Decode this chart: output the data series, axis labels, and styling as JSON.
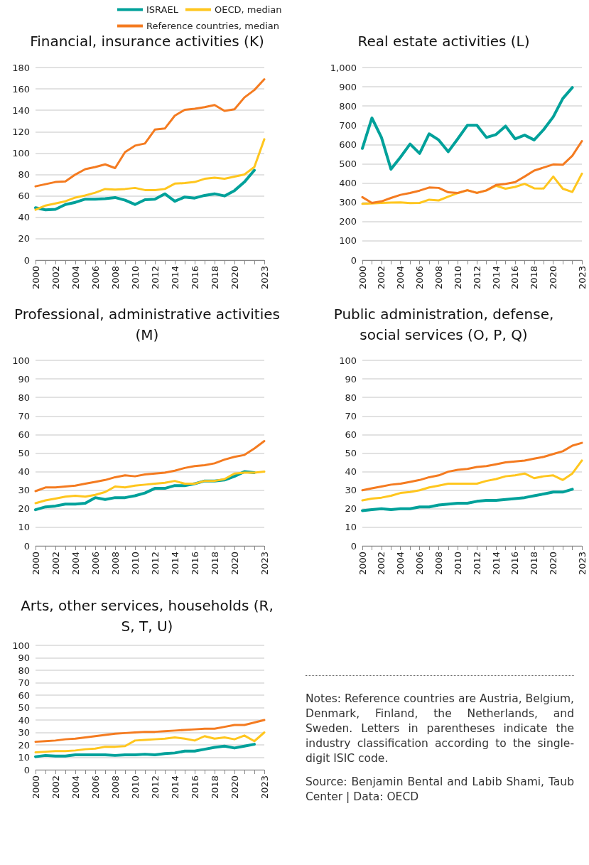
{
  "chart_data": [
    {
      "type": "line",
      "title": "Financial, insurance activities (K)",
      "legend": "top",
      "grid": "y",
      "marker": "none",
      "line_style": "solid",
      "categories": [
        "2000",
        null,
        "2002",
        null,
        "2004",
        null,
        "2006",
        null,
        "2008",
        null,
        "2010",
        null,
        "2012",
        null,
        "2014",
        null,
        "2016",
        null,
        "2018",
        null,
        "2020",
        null,
        null,
        "2023"
      ],
      "ylim": [
        0,
        180
      ],
      "yticks": [
        0,
        20,
        40,
        60,
        80,
        100,
        120,
        140,
        160,
        180
      ],
      "series": [
        {
          "name": "ISRAEL",
          "color": "#00a19a",
          "values": [
            49,
            47,
            47.5,
            52,
            54,
            57,
            57,
            57.5,
            58.5,
            56,
            52,
            56.5,
            57,
            62,
            55,
            59,
            58,
            60.5,
            62,
            60,
            65,
            73,
            84,
            null
          ]
        },
        {
          "name": "OECD, median",
          "color": "#ffc61e",
          "values": [
            47,
            51,
            53,
            55,
            58.5,
            60.5,
            63,
            66.5,
            66,
            66.5,
            67.5,
            65.5,
            65.5,
            66.5,
            71.5,
            72,
            73,
            76,
            77,
            76,
            78,
            80,
            87,
            113
          ]
        },
        {
          "name": "Reference countries, median",
          "color": "#f47b20",
          "values": [
            69,
            71,
            73,
            73.5,
            80,
            85,
            87,
            89.5,
            86,
            101,
            107,
            109,
            122,
            123,
            135,
            140.5,
            141.5,
            143,
            145,
            139.5,
            141,
            152,
            159,
            169
          ]
        }
      ]
    },
    {
      "type": "line",
      "title": "Real estate activities (L)",
      "grid": "y",
      "marker": "none",
      "line_style": "solid",
      "categories": [
        "2000",
        null,
        "2002",
        null,
        "2004",
        null,
        "2006",
        null,
        "2008",
        null,
        "2010",
        null,
        "2012",
        null,
        "2014",
        null,
        "2016",
        null,
        "2018",
        null,
        "2020",
        null,
        null,
        "2023"
      ],
      "ylim": [
        0,
        1000
      ],
      "yticks": [
        0,
        100,
        200,
        300,
        400,
        500,
        600,
        700,
        800,
        900,
        {
          "value": 1000,
          "label": "1,000"
        }
      ],
      "series": [
        {
          "color": "#00a19a",
          "values": [
            580,
            738,
            637,
            472,
            535,
            603,
            554,
            656,
            624,
            563,
            630,
            700,
            700,
            637,
            652,
            696,
            630,
            649,
            624,
            678,
            744,
            839,
            896,
            null
          ]
        },
        {
          "color": "#ffc61e",
          "values": [
            292,
            294,
            297,
            299,
            300,
            296,
            297,
            314,
            310,
            330,
            348,
            363,
            349,
            362,
            386,
            371,
            380,
            396,
            373,
            372,
            434,
            371,
            354,
            449
          ]
        },
        {
          "color": "#f47b20",
          "values": [
            327,
            297,
            305,
            323,
            339,
            349,
            361,
            377,
            375,
            352,
            349,
            363,
            349,
            362,
            390,
            396,
            405,
            434,
            465,
            481,
            497,
            495,
            542,
            618
          ]
        }
      ]
    },
    {
      "type": "line",
      "title": "Professional, administrative activities (M)",
      "grid": "y",
      "marker": "none",
      "line_style": "solid",
      "categories": [
        "2000",
        null,
        "2002",
        null,
        "2004",
        null,
        "2006",
        null,
        "2008",
        null,
        "2010",
        null,
        "2012",
        null,
        "2014",
        null,
        "2016",
        null,
        "2018",
        null,
        "2020",
        null,
        null,
        "2023"
      ],
      "ylim": [
        0,
        100
      ],
      "yticks": [
        0,
        10,
        20,
        30,
        40,
        50,
        60,
        70,
        80,
        90,
        100
      ],
      "series": [
        {
          "color": "#00a19a",
          "values": [
            19.5,
            21,
            21.5,
            22.5,
            22.5,
            23,
            26,
            25,
            26,
            26,
            27,
            28.5,
            31,
            31,
            32.5,
            32.5,
            33.5,
            35,
            35,
            35.5,
            37.5,
            40,
            39.5,
            null
          ]
        },
        {
          "color": "#ffc61e",
          "values": [
            23,
            24.5,
            25.5,
            26.5,
            27,
            26.5,
            27.5,
            29,
            32,
            31.5,
            32.5,
            33,
            33.5,
            34,
            35,
            33.5,
            33.5,
            35,
            35,
            36,
            39,
            39.5,
            39.5,
            40
          ]
        },
        {
          "color": "#f47b20",
          "values": [
            29.5,
            31.5,
            31.5,
            32,
            32.5,
            33.5,
            34.5,
            35.5,
            37,
            38,
            37.5,
            38.5,
            39,
            39.5,
            40.5,
            42,
            43,
            43.5,
            44.5,
            46.5,
            48,
            49,
            52.5,
            56.5
          ]
        }
      ]
    },
    {
      "type": "line",
      "title": "Public administration, defense, social services (O, P, Q)",
      "grid": "y",
      "marker": "none",
      "line_style": "solid",
      "categories": [
        "2000",
        null,
        "2002",
        null,
        "2004",
        null,
        "2006",
        null,
        "2008",
        null,
        "2010",
        null,
        "2012",
        null,
        "2014",
        null,
        "2016",
        null,
        "2018",
        null,
        "2020",
        null,
        null,
        "2023"
      ],
      "ylim": [
        0,
        100
      ],
      "yticks": [
        0,
        10,
        20,
        30,
        40,
        50,
        60,
        70,
        80,
        90,
        100
      ],
      "series": [
        {
          "color": "#00a19a",
          "values": [
            19,
            19.5,
            20,
            19.5,
            20,
            20,
            21,
            21,
            22,
            22.5,
            23,
            23,
            24,
            24.5,
            24.5,
            25,
            25.5,
            26,
            27,
            28,
            29,
            29,
            30.5,
            null
          ]
        },
        {
          "color": "#ffc61e",
          "values": [
            24.5,
            25.5,
            26,
            27,
            28.5,
            29,
            30,
            31.5,
            32.5,
            33.5,
            33.5,
            33.5,
            33.5,
            35,
            36,
            37.5,
            38,
            39,
            36.5,
            37.5,
            38,
            35.5,
            39,
            46
          ]
        },
        {
          "color": "#f47b20",
          "values": [
            30,
            31,
            32,
            33,
            33.5,
            34.5,
            35.5,
            37,
            38,
            40,
            41,
            41.5,
            42.5,
            43,
            44,
            45,
            45.5,
            46,
            47,
            48,
            49.5,
            51,
            54,
            55.5
          ]
        }
      ]
    },
    {
      "type": "line",
      "title": "Arts, other services, households (R, S, T, U)",
      "grid": "y",
      "marker": "none",
      "line_style": "solid",
      "categories": [
        "2000",
        null,
        "2002",
        null,
        "2004",
        null,
        "2006",
        null,
        "2008",
        null,
        "2010",
        null,
        "2012",
        null,
        "2014",
        null,
        "2016",
        null,
        "2018",
        null,
        "2020",
        null,
        null,
        "2023"
      ],
      "ylim": [
        0,
        100
      ],
      "yticks": [
        0,
        10,
        20,
        30,
        40,
        50,
        60,
        70,
        80,
        90,
        100
      ],
      "series": [
        {
          "color": "#00a19a",
          "values": [
            10.5,
            11.5,
            11,
            11,
            12,
            12,
            12,
            12,
            11.5,
            12,
            12,
            12.5,
            12,
            13,
            13.5,
            15,
            15,
            16.5,
            18,
            19,
            17.5,
            19,
            20.5,
            null
          ]
        },
        {
          "color": "#ffc61e",
          "values": [
            14,
            14.5,
            15,
            15,
            15.5,
            16.5,
            17,
            18.5,
            18.5,
            19,
            23.5,
            24,
            24.5,
            25,
            26,
            25,
            23.5,
            27,
            25,
            26,
            24.5,
            27.5,
            23,
            30
          ]
        },
        {
          "color": "#f47b20",
          "values": [
            22.5,
            23,
            23.5,
            24.5,
            25,
            26,
            27,
            28,
            29,
            29.5,
            30,
            30.5,
            30.5,
            31,
            31.5,
            32,
            32.5,
            33,
            33,
            34.5,
            36,
            36,
            38,
            40
          ]
        }
      ]
    },
    {
      "type": "other",
      "annotations": [
        "Notes: Reference countries are Austria, Belgium, Denmark, Finland, the Netherlands, and Sweden. Letters in parentheses indicate the industry classification according to the single-digit ISIC code.",
        "Source: Benjamin Bental and Labib Shami, Taub Center | Data: OECD"
      ]
    }
  ]
}
